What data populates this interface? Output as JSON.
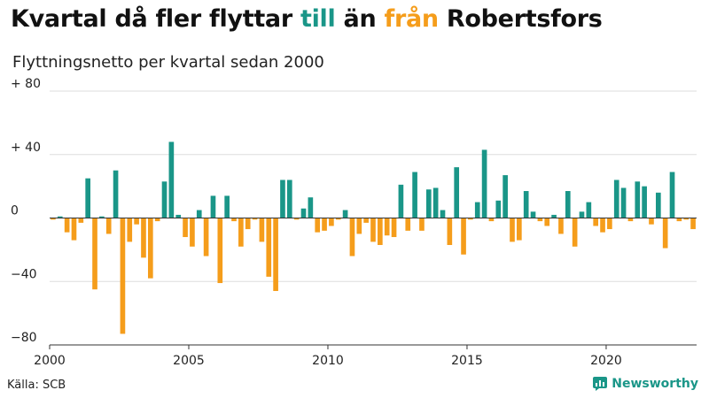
{
  "header": {
    "title_part1": "Kvartal då fler flyttar ",
    "title_pos": "till",
    "title_part2": " än ",
    "title_neg": "från",
    "title_part3": " Robertsfors",
    "subtitle": "Flyttningsnetto per kvartal sedan 2000"
  },
  "footer": {
    "source": "Källa: SCB",
    "brand": "Newsworthy"
  },
  "colors": {
    "positive": "#1a9688",
    "negative": "#f59d1b",
    "grid": "#dddddd",
    "axis": "#333333",
    "brand": "#1a9688"
  },
  "chart_data": {
    "type": "bar",
    "title": "Kvartal då fler flyttar till än från Robertsfors",
    "subtitle": "Flyttningsnetto per kvartal sedan 2000",
    "x_start_year": 2000,
    "quarters_per_year": 4,
    "ylim": [
      -80,
      80
    ],
    "xlim": [
      2000,
      2023.25
    ],
    "y_ticks": [
      80,
      40,
      0,
      -40,
      -80
    ],
    "y_tick_labels": [
      "+ 80",
      "+ 40",
      "0",
      "−40",
      "−80"
    ],
    "x_ticks": [
      2000,
      2005,
      2010,
      2015,
      2020
    ],
    "x_tick_labels": [
      "2000",
      "2005",
      "2010",
      "2015",
      "2020"
    ],
    "grid": true,
    "values": [
      -1,
      1,
      -9,
      -14,
      -3,
      25,
      -45,
      1,
      -10,
      30,
      -73,
      -15,
      -4,
      -25,
      -38,
      -2,
      23,
      48,
      2,
      -12,
      -18,
      5,
      -24,
      14,
      -41,
      14,
      -2,
      -18,
      -7,
      -1,
      -15,
      -37,
      -46,
      24,
      24,
      -1,
      6,
      13,
      -9,
      -8,
      -5,
      -1,
      5,
      -24,
      -10,
      -3,
      -15,
      -17,
      -11,
      -12,
      21,
      -8,
      29,
      -8,
      18,
      19,
      5,
      -17,
      32,
      -23,
      -1,
      10,
      43,
      -2,
      11,
      27,
      -15,
      -14,
      17,
      4,
      -2,
      -5,
      2,
      -10,
      17,
      -18,
      4,
      10,
      -5,
      -9,
      -7,
      24,
      19,
      -2,
      23,
      20,
      -4,
      16,
      -19,
      29,
      -2,
      -1,
      -7
    ]
  }
}
